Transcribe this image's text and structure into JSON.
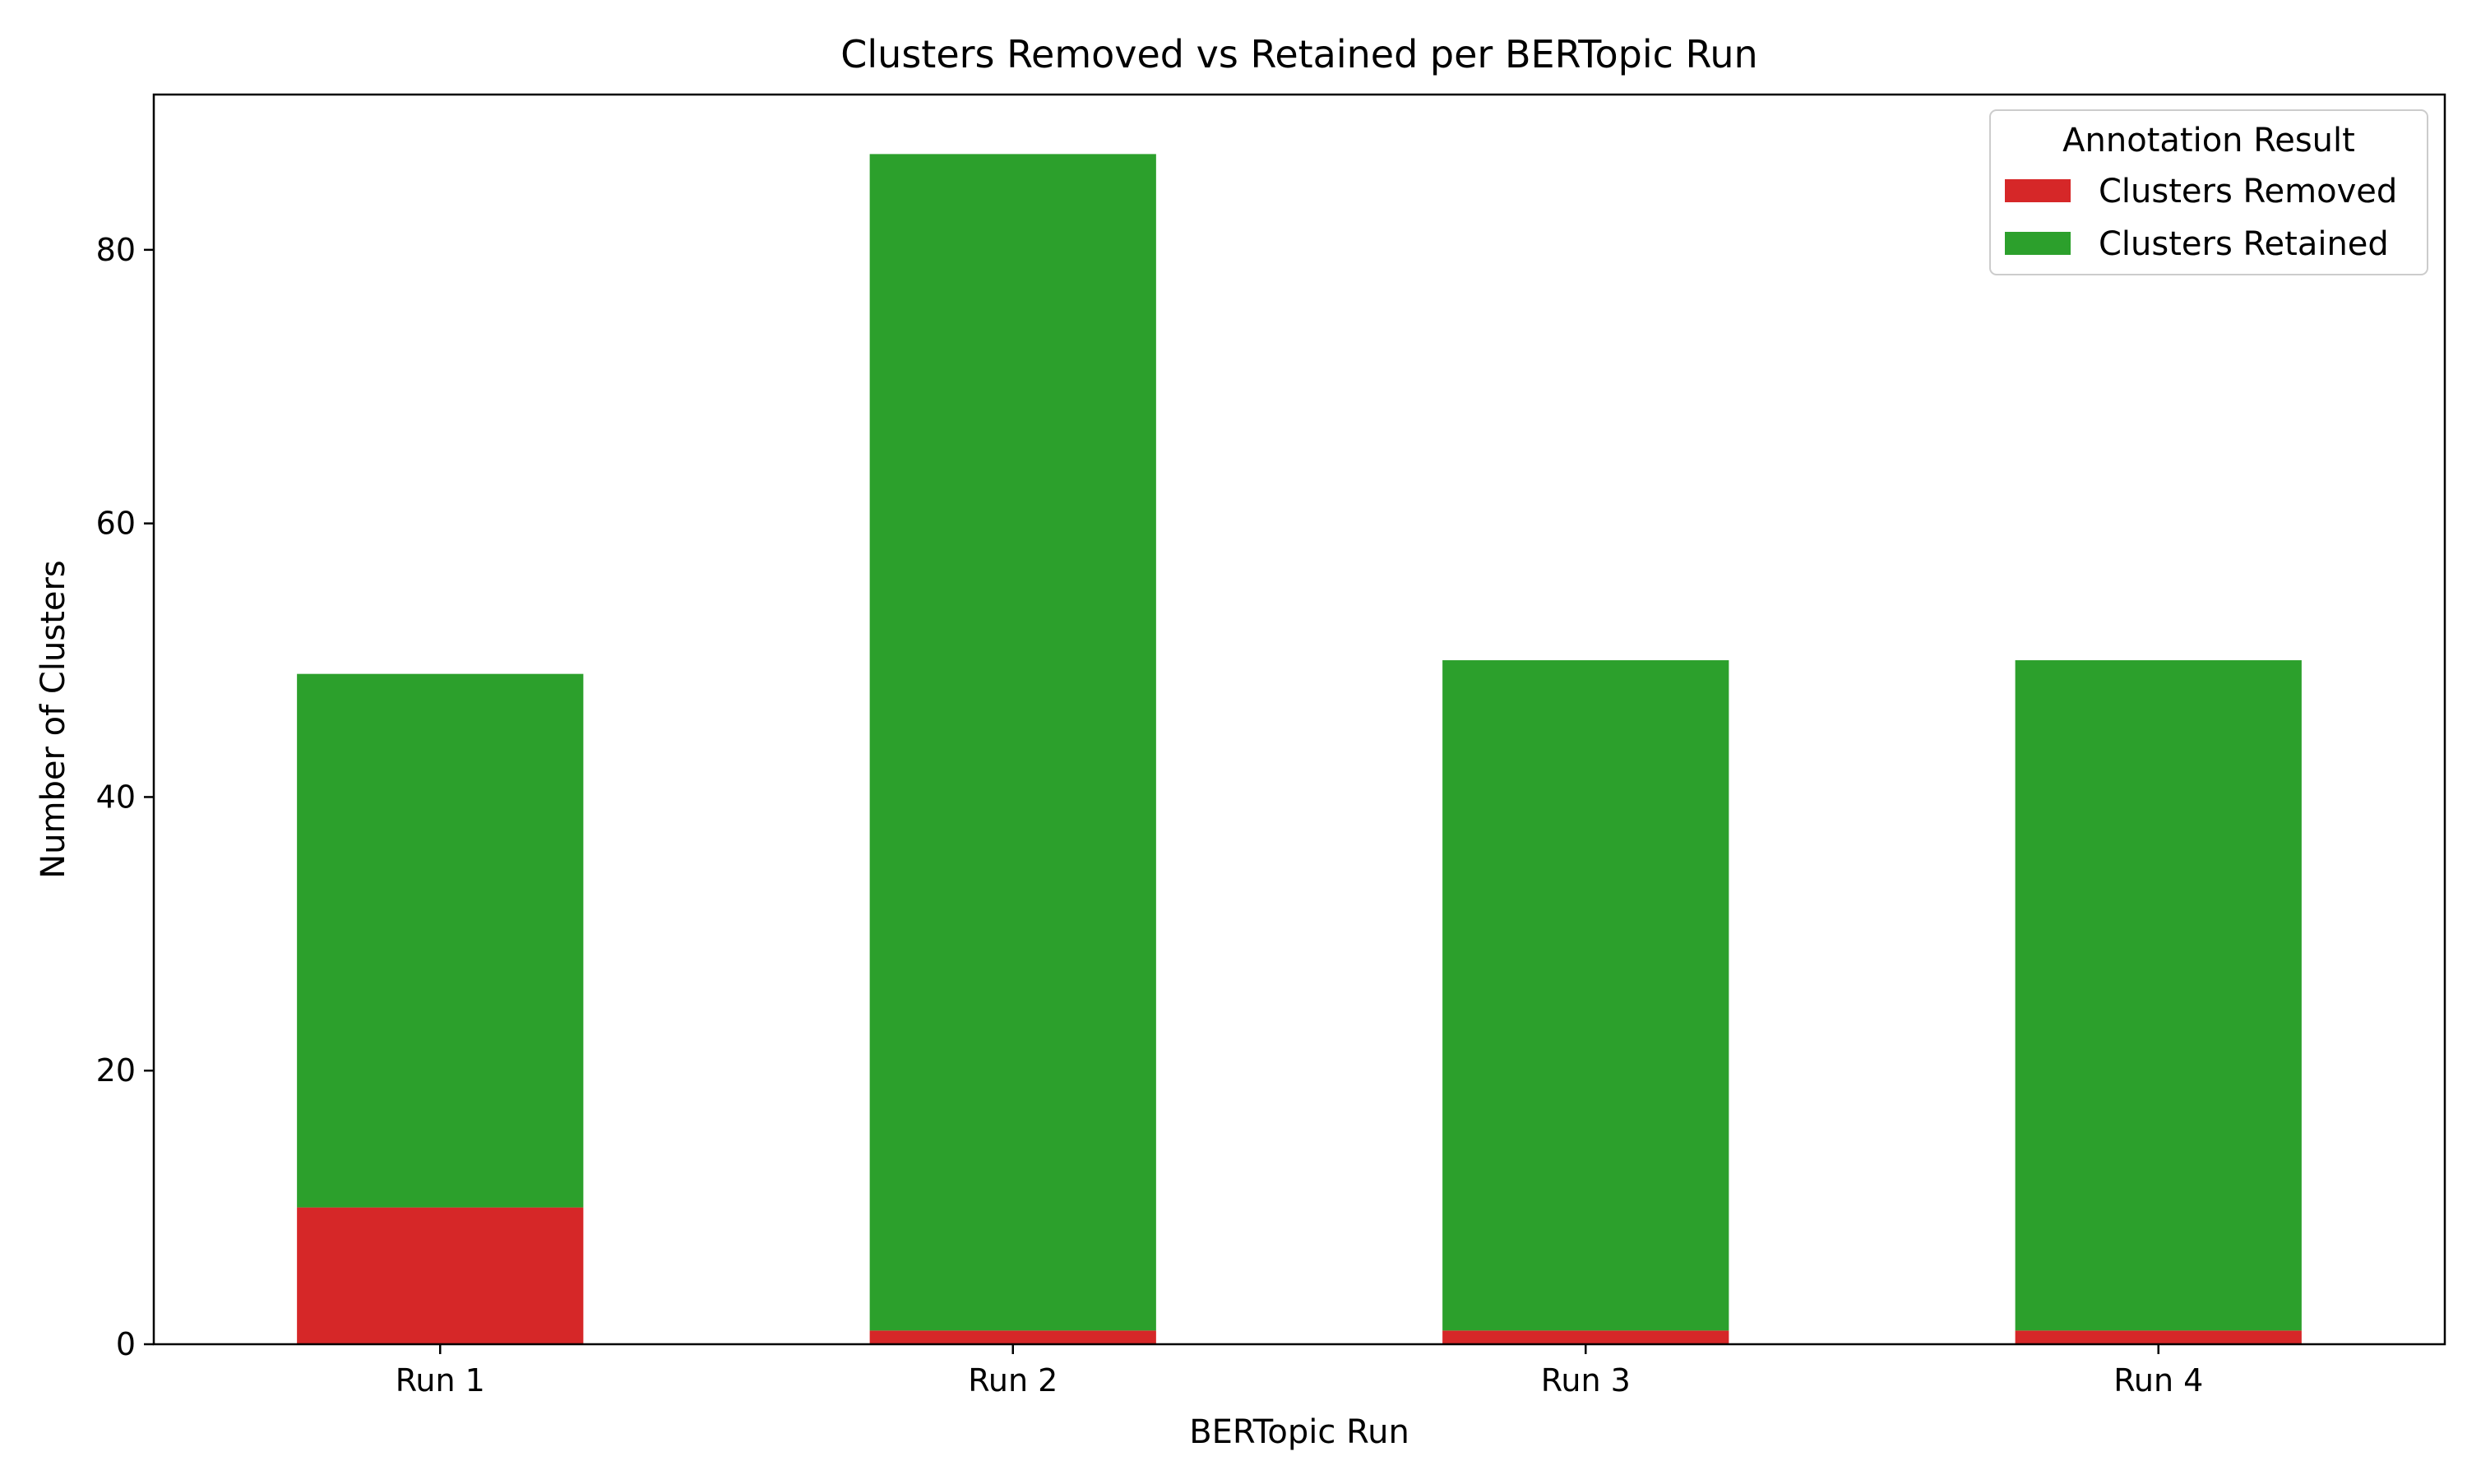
{
  "chart_data": {
    "type": "bar",
    "stacked": true,
    "title": "Clusters Removed vs Retained per BERTopic Run",
    "xlabel": "BERTopic Run",
    "ylabel": "Number of Clusters",
    "categories": [
      "Run 1",
      "Run 2",
      "Run 3",
      "Run 4"
    ],
    "series": [
      {
        "name": "Clusters Removed",
        "values": [
          10,
          1,
          1,
          1
        ],
        "color": "#d62728"
      },
      {
        "name": "Clusters Retained",
        "values": [
          39,
          86,
          49,
          49
        ],
        "color": "#2ca02c"
      }
    ],
    "ylim": [
      0,
      91.35
    ],
    "yticks": [
      0,
      20,
      40,
      60,
      80
    ],
    "grid": false,
    "legend": {
      "title": "Annotation Result",
      "position": "top-right"
    }
  }
}
